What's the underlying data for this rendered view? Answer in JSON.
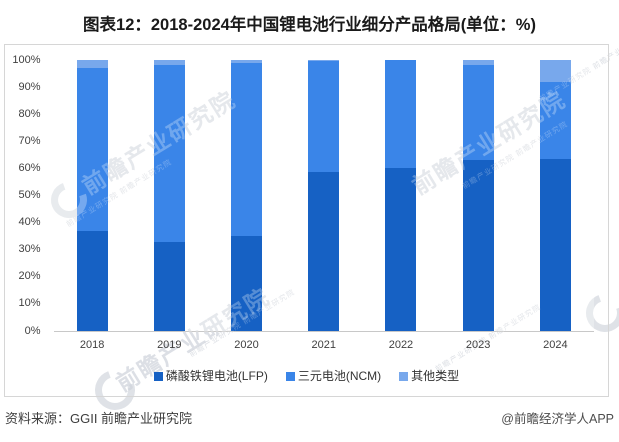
{
  "title": "图表12：2018-2024年中国锂电池行业细分产品格局(单位：%)",
  "chart_data": {
    "type": "bar",
    "stacked": true,
    "categories": [
      "2018",
      "2019",
      "2020",
      "2021",
      "2022",
      "2023",
      "2024"
    ],
    "series": [
      {
        "name": "磷酸铁锂电池(LFP)",
        "color": "#1661C4",
        "values": [
          37,
          33,
          35,
          58.5,
          60,
          63,
          63.5
        ]
      },
      {
        "name": "三元电池(NCM)",
        "color": "#3A85E8",
        "values": [
          60,
          65,
          64,
          41,
          40,
          35,
          28.5
        ]
      },
      {
        "name": "其他类型",
        "color": "#78A8EC",
        "values": [
          3,
          2,
          1,
          0.5,
          0,
          2,
          8
        ]
      }
    ],
    "title": "图表12：2018-2024年中国锂电池行业细分产品格局(单位：%)",
    "xlabel": "",
    "ylabel": "",
    "ylim": [
      0,
      100
    ],
    "ytick_labels": [
      "0%",
      "10%",
      "20%",
      "30%",
      "40%",
      "50%",
      "60%",
      "70%",
      "80%",
      "90%",
      "100%"
    ],
    "grid": false,
    "legend_position": "bottom"
  },
  "footer": {
    "source": "资料来源：GGII 前瞻产业研究院",
    "credit": "@前瞻经济学人APP"
  },
  "watermark": {
    "text": "前瞻产业研究院",
    "subtext": "前瞻产业研究院 前瞻产业研究院"
  }
}
